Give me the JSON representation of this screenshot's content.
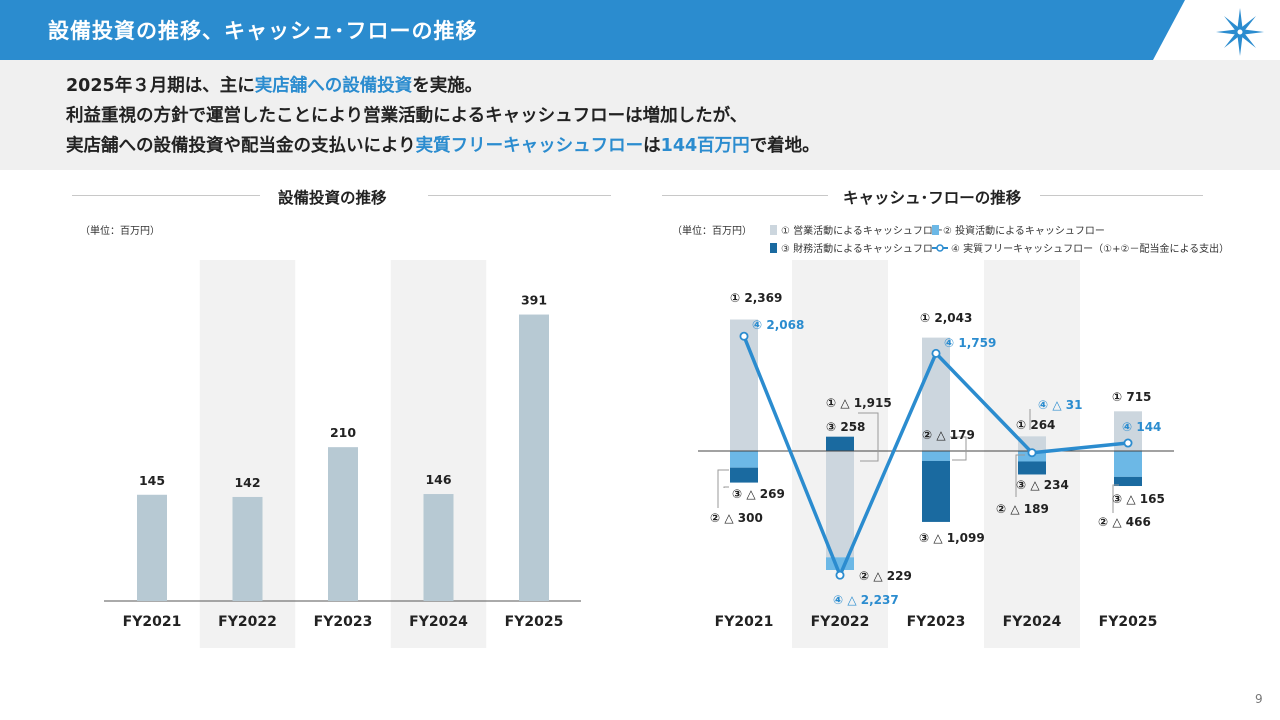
{
  "header": {
    "title": "設備投資の推移、キャッシュ･フローの推移",
    "colors": {
      "accent": "#2b8ccf"
    }
  },
  "summary": {
    "line1": [
      {
        "t": "2025年３月期は、主に",
        "hl": false
      },
      {
        "t": "実店舗への設備投資",
        "hl": true
      },
      {
        "t": "を実施。",
        "hl": false
      }
    ],
    "line2": [
      {
        "t": "利益重視の方針で運営したことにより営業活動によるキャッシュフローは増加したが、",
        "hl": false
      }
    ],
    "line3": [
      {
        "t": "実店舗への設備投資や配当金の支払いにより",
        "hl": false
      },
      {
        "t": "実質フリーキャッシュフロー",
        "hl": true
      },
      {
        "t": "は",
        "hl": false
      },
      {
        "t": "144百万円",
        "hl": true
      },
      {
        "t": "で着地。",
        "hl": false
      }
    ]
  },
  "left_chart": {
    "section_title": "設備投資の推移",
    "unit": "（単位：百万円）"
  },
  "right_chart": {
    "section_title": "キャッシュ･フローの推移",
    "unit": "（単位：百万円）",
    "legend": [
      {
        "label": "① 営業活動によるキャッシュフロー",
        "color": "#ccd6de"
      },
      {
        "label": "② 投資活動によるキャッシュフロー",
        "color": "#6cb8e6"
      },
      {
        "label": "③ 財務活動によるキャッシュフロー",
        "color": "#1a6aa0"
      },
      {
        "label": "④ 実質フリーキャッシュフロー（①+②－配当金による支出）",
        "color": "#2b8ccf"
      }
    ]
  },
  "page_number": "9",
  "chart_data": [
    {
      "type": "bar",
      "title": "設備投資の推移",
      "unit": "（単位：百万円）",
      "categories": [
        "FY2021",
        "FY2022",
        "FY2023",
        "FY2024",
        "FY2025"
      ],
      "values": [
        145,
        142,
        210,
        146,
        391
      ],
      "value_labels": [
        "145",
        "142",
        "210",
        "146",
        "391"
      ],
      "ylim": [
        0,
        460
      ],
      "colors": {
        "bar": "#b7c9d3",
        "band": "#f2f2f2"
      }
    },
    {
      "type": "bar",
      "title": "キャッシュ･フローの推移",
      "unit": "（単位：百万円）",
      "categories": [
        "FY2021",
        "FY2022",
        "FY2023",
        "FY2024",
        "FY2025"
      ],
      "ylim": [
        -2400,
        2700
      ],
      "series": [
        {
          "name": "① 営業活動によるキャッシュフロー",
          "values": [
            2369,
            -1915,
            2043,
            264,
            715
          ],
          "labels": [
            "① 2,369",
            "① △ 1,915",
            "① 2,043",
            "① 264",
            "① 715"
          ]
        },
        {
          "name": "② 投資活動によるキャッシュフロー",
          "values": [
            -300,
            -229,
            -179,
            -189,
            -466
          ],
          "labels": [
            "② △ 300",
            "② △ 229",
            "② △ 179",
            "② △ 189",
            "② △ 466"
          ]
        },
        {
          "name": "③ 財務活動によるキャッシュフロー",
          "values": [
            -269,
            258,
            -1099,
            -234,
            -165
          ],
          "labels": [
            "③ △ 269",
            "③ 258",
            "③ △ 1,099",
            "③ △ 234",
            "③ △ 165"
          ]
        },
        {
          "name": "④ 実質フリーキャッシュフロー（①+②－配当金による支出）",
          "type": "line",
          "values": [
            2068,
            -2237,
            1759,
            -31,
            144
          ],
          "labels": [
            "④ 2,068",
            "④ △ 2,237",
            "④ 1,759",
            "④ △ 31",
            "④ 144"
          ]
        }
      ]
    }
  ]
}
